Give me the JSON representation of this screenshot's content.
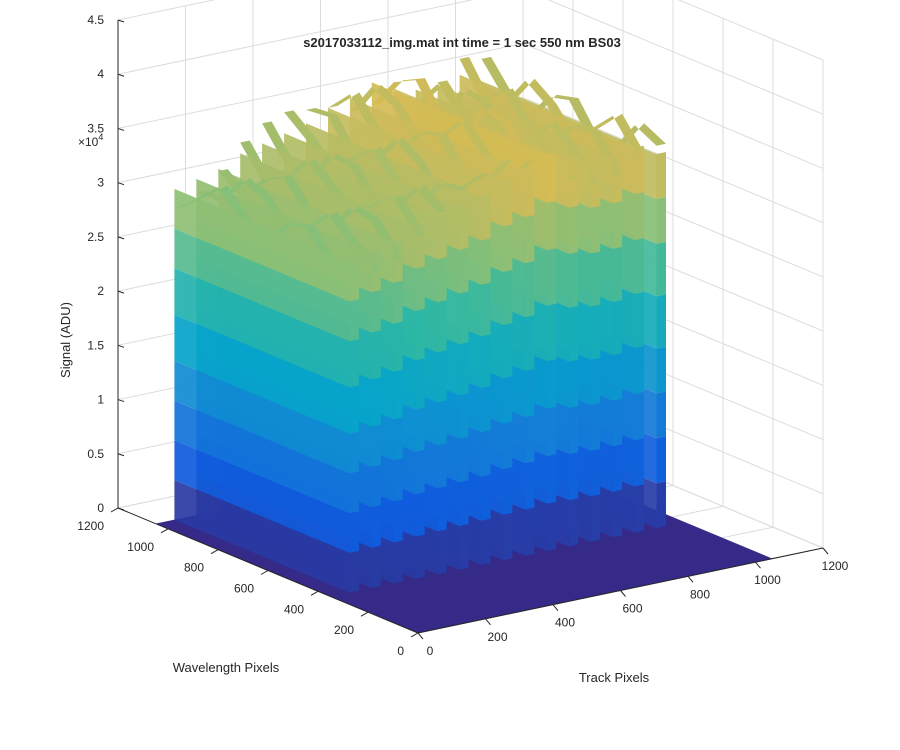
{
  "chart_data": {
    "type": "surface3d",
    "title": "s2017033112_img.mat int time = 1 sec  550 nm BS03",
    "xlabel": "Track Pixels",
    "ylabel": "Wavelength Pixels",
    "zlabel": "Signal (ADU)",
    "z_exponent_label": "×10",
    "z_exponent_power": "4",
    "xlim": [
      0,
      1200
    ],
    "ylim": [
      0,
      1200
    ],
    "zlim": [
      0,
      45000
    ],
    "x_ticks": [
      "0",
      "200",
      "400",
      "600",
      "800",
      "1000",
      "1200"
    ],
    "y_ticks": [
      "0",
      "200",
      "400",
      "600",
      "800",
      "1000",
      "1200"
    ],
    "z_ticks": [
      "0",
      "0.5",
      "1",
      "1.5",
      "2",
      "2.5",
      "3",
      "3.5",
      "4",
      "4.5"
    ],
    "grid": true,
    "floor_extent": {
      "x": [
        0,
        1050
      ],
      "y": [
        0,
        1050
      ]
    },
    "stripe_wavelength_range": [
      350,
      1050
    ],
    "stripes": [
      {
        "track_center": 70,
        "peak": 30500
      },
      {
        "track_center": 135,
        "peak": 31000
      },
      {
        "track_center": 200,
        "peak": 31500
      },
      {
        "track_center": 265,
        "peak": 32500
      },
      {
        "track_center": 330,
        "peak": 33000
      },
      {
        "track_center": 395,
        "peak": 33500
      },
      {
        "track_center": 460,
        "peak": 34000
      },
      {
        "track_center": 525,
        "peak": 35000
      },
      {
        "track_center": 590,
        "peak": 35500
      },
      {
        "track_center": 655,
        "peak": 36500
      },
      {
        "track_center": 720,
        "peak": 35500
      },
      {
        "track_center": 785,
        "peak": 35000
      },
      {
        "track_center": 850,
        "peak": 35000
      },
      {
        "track_center": 915,
        "peak": 35500
      },
      {
        "track_center": 980,
        "peak": 34500
      }
    ],
    "colormap": [
      "#352a87",
      "#0f5cdd",
      "#1481d6",
      "#06a4ca",
      "#2eb7a4",
      "#87bf77",
      "#d1bb59",
      "#fec832",
      "#f9fb0e"
    ],
    "floor_color": "#352a87"
  }
}
